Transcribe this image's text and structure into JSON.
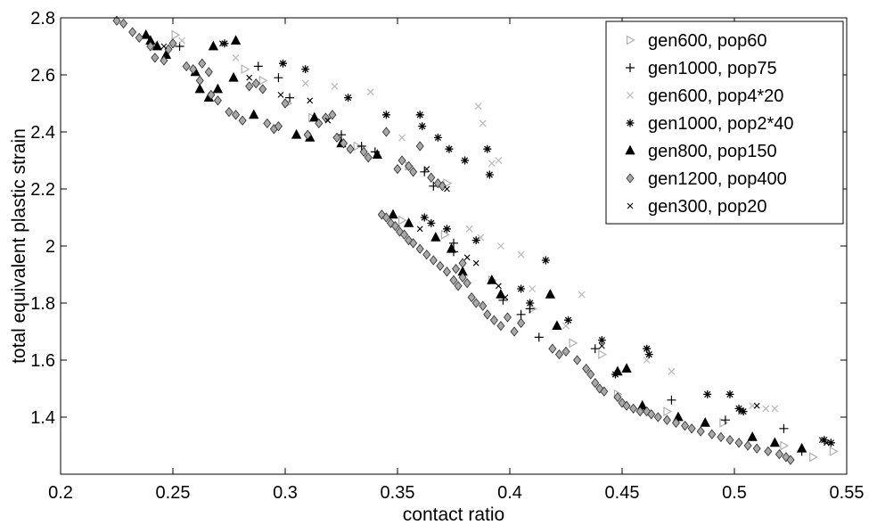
{
  "chart_data": {
    "type": "scatter",
    "xlabel": "contact ratio",
    "ylabel": "total equivalent plastic strain",
    "xlim": [
      0.2,
      0.55
    ],
    "ylim": [
      1.2,
      2.8
    ],
    "xticks": [
      "0.2",
      "0.25",
      "0.3",
      "0.35",
      "0.4",
      "0.45",
      "0.5",
      "0.55"
    ],
    "yticks": [
      "1.4",
      "1.6",
      "1.8",
      "2",
      "2.2",
      "2.4",
      "2.6",
      "2.8"
    ],
    "legend_position": "top-right",
    "grid": false,
    "series": [
      {
        "name": "gen600, pop60",
        "marker": "triangle-right-open",
        "color": "#b0b0b0",
        "points": [
          [
            0.251,
            2.74
          ],
          [
            0.282,
            2.62
          ],
          [
            0.29,
            2.58
          ],
          [
            0.301,
            2.5
          ],
          [
            0.312,
            2.45
          ],
          [
            0.332,
            2.35
          ],
          [
            0.355,
            2.28
          ],
          [
            0.372,
            2.22
          ],
          [
            0.352,
            2.09
          ],
          [
            0.371,
            2.04
          ],
          [
            0.392,
            1.88
          ],
          [
            0.41,
            1.78
          ],
          [
            0.428,
            1.66
          ],
          [
            0.441,
            1.62
          ],
          [
            0.448,
            1.48
          ],
          [
            0.47,
            1.42
          ],
          [
            0.495,
            1.38
          ],
          [
            0.522,
            1.3
          ],
          [
            0.535,
            1.26
          ],
          [
            0.544,
            1.28
          ]
        ]
      },
      {
        "name": "gen1000, pop75",
        "marker": "plus",
        "color": "#000000",
        "points": [
          [
            0.253,
            2.7
          ],
          [
            0.288,
            2.63
          ],
          [
            0.297,
            2.59
          ],
          [
            0.302,
            2.52
          ],
          [
            0.325,
            2.39
          ],
          [
            0.334,
            2.35
          ],
          [
            0.34,
            2.33
          ],
          [
            0.362,
            2.26
          ],
          [
            0.366,
            2.21
          ],
          [
            0.349,
            2.07
          ],
          [
            0.375,
            2.01
          ],
          [
            0.375,
            1.98
          ],
          [
            0.397,
            1.81
          ],
          [
            0.405,
            1.76
          ],
          [
            0.409,
            1.78
          ],
          [
            0.413,
            1.68
          ],
          [
            0.438,
            1.64
          ],
          [
            0.472,
            1.46
          ],
          [
            0.496,
            1.39
          ],
          [
            0.522,
            1.36
          ],
          [
            0.53,
            1.28
          ]
        ]
      },
      {
        "name": "gen600, pop4*20",
        "marker": "x-light",
        "color": "#b8b8b8",
        "points": [
          [
            0.242,
            2.71
          ],
          [
            0.254,
            2.72
          ],
          [
            0.278,
            2.66
          ],
          [
            0.309,
            2.57
          ],
          [
            0.322,
            2.56
          ],
          [
            0.338,
            2.54
          ],
          [
            0.352,
            2.38
          ],
          [
            0.386,
            2.49
          ],
          [
            0.388,
            2.43
          ],
          [
            0.392,
            2.29
          ],
          [
            0.395,
            2.3
          ],
          [
            0.382,
            2.06
          ],
          [
            0.387,
            2.03
          ],
          [
            0.396,
            2.0
          ],
          [
            0.405,
            1.97
          ],
          [
            0.41,
            1.85
          ],
          [
            0.425,
            1.72
          ],
          [
            0.432,
            1.83
          ],
          [
            0.461,
            1.6
          ],
          [
            0.472,
            1.56
          ],
          [
            0.508,
            1.44
          ],
          [
            0.514,
            1.43
          ],
          [
            0.518,
            1.43
          ]
        ]
      },
      {
        "name": "gen1000, pop2*40",
        "marker": "star",
        "color": "#000000",
        "points": [
          [
            0.273,
            2.71
          ],
          [
            0.299,
            2.64
          ],
          [
            0.309,
            2.62
          ],
          [
            0.328,
            2.52
          ],
          [
            0.345,
            2.46
          ],
          [
            0.36,
            2.46
          ],
          [
            0.361,
            2.42
          ],
          [
            0.368,
            2.38
          ],
          [
            0.373,
            2.34
          ],
          [
            0.38,
            2.3
          ],
          [
            0.39,
            2.34
          ],
          [
            0.391,
            2.25
          ],
          [
            0.362,
            2.1
          ],
          [
            0.365,
            2.08
          ],
          [
            0.372,
            2.06
          ],
          [
            0.385,
            2.02
          ],
          [
            0.405,
            1.85
          ],
          [
            0.409,
            1.8
          ],
          [
            0.416,
            1.95
          ],
          [
            0.426,
            1.74
          ],
          [
            0.441,
            1.67
          ],
          [
            0.447,
            1.55
          ],
          [
            0.461,
            1.64
          ],
          [
            0.462,
            1.62
          ],
          [
            0.488,
            1.48
          ],
          [
            0.498,
            1.48
          ],
          [
            0.502,
            1.43
          ],
          [
            0.504,
            1.42
          ],
          [
            0.54,
            1.32
          ],
          [
            0.543,
            1.31
          ]
        ]
      },
      {
        "name": "gen800, pop150",
        "marker": "triangle-filled",
        "color": "#000000",
        "points": [
          [
            0.238,
            2.74
          ],
          [
            0.243,
            2.7
          ],
          [
            0.247,
            2.67
          ],
          [
            0.26,
            2.61
          ],
          [
            0.266,
            2.52
          ],
          [
            0.27,
            2.55
          ],
          [
            0.277,
            2.59
          ],
          [
            0.286,
            2.46
          ],
          [
            0.305,
            2.39
          ],
          [
            0.311,
            2.38
          ],
          [
            0.313,
            2.45
          ],
          [
            0.325,
            2.36
          ],
          [
            0.341,
            2.32
          ],
          [
            0.348,
            2.11
          ],
          [
            0.355,
            2.08
          ],
          [
            0.367,
            2.03
          ],
          [
            0.374,
            1.99
          ],
          [
            0.379,
            1.91
          ],
          [
            0.392,
            1.88
          ],
          [
            0.396,
            1.83
          ],
          [
            0.418,
            1.83
          ],
          [
            0.421,
            1.72
          ],
          [
            0.448,
            1.56
          ],
          [
            0.452,
            1.57
          ],
          [
            0.459,
            1.44
          ],
          [
            0.475,
            1.4
          ],
          [
            0.487,
            1.38
          ],
          [
            0.508,
            1.33
          ],
          [
            0.518,
            1.31
          ],
          [
            0.53,
            1.29
          ],
          [
            0.268,
            2.7
          ],
          [
            0.278,
            2.72
          ],
          [
            0.24,
            2.72
          ],
          [
            0.262,
            2.55
          ]
        ]
      },
      {
        "name": "gen1200, pop400",
        "marker": "diamond-gray",
        "color": "#a8a8a8",
        "points": [
          [
            0.225,
            2.79
          ],
          [
            0.228,
            2.78
          ],
          [
            0.232,
            2.75
          ],
          [
            0.235,
            2.73
          ],
          [
            0.24,
            2.7
          ],
          [
            0.242,
            2.66
          ],
          [
            0.246,
            2.65
          ],
          [
            0.248,
            2.69
          ],
          [
            0.25,
            2.71
          ],
          [
            0.256,
            2.63
          ],
          [
            0.259,
            2.62
          ],
          [
            0.262,
            2.58
          ],
          [
            0.263,
            2.64
          ],
          [
            0.266,
            2.61
          ],
          [
            0.267,
            2.53
          ],
          [
            0.27,
            2.51
          ],
          [
            0.275,
            2.47
          ],
          [
            0.278,
            2.46
          ],
          [
            0.281,
            2.44
          ],
          [
            0.284,
            2.56
          ],
          [
            0.287,
            2.57
          ],
          [
            0.29,
            2.55
          ],
          [
            0.292,
            2.43
          ],
          [
            0.295,
            2.41
          ],
          [
            0.297,
            2.42
          ],
          [
            0.3,
            2.5
          ],
          [
            0.31,
            2.39
          ],
          [
            0.315,
            2.43
          ],
          [
            0.318,
            2.45
          ],
          [
            0.321,
            2.46
          ],
          [
            0.323,
            2.38
          ],
          [
            0.326,
            2.36
          ],
          [
            0.329,
            2.34
          ],
          [
            0.335,
            2.33
          ],
          [
            0.337,
            2.31
          ],
          [
            0.345,
            2.4
          ],
          [
            0.35,
            2.27
          ],
          [
            0.352,
            2.3
          ],
          [
            0.355,
            2.28
          ],
          [
            0.357,
            2.26
          ],
          [
            0.36,
            2.35
          ],
          [
            0.365,
            2.24
          ],
          [
            0.368,
            2.22
          ],
          [
            0.37,
            2.21
          ],
          [
            0.343,
            2.11
          ],
          [
            0.345,
            2.1
          ],
          [
            0.347,
            2.08
          ],
          [
            0.349,
            2.07
          ],
          [
            0.351,
            2.05
          ],
          [
            0.353,
            2.04
          ],
          [
            0.355,
            2.02
          ],
          [
            0.357,
            2.01
          ],
          [
            0.36,
            1.99
          ],
          [
            0.363,
            1.97
          ],
          [
            0.366,
            1.95
          ],
          [
            0.369,
            1.93
          ],
          [
            0.372,
            1.91
          ],
          [
            0.375,
            1.88
          ],
          [
            0.377,
            1.86
          ],
          [
            0.379,
            1.89
          ],
          [
            0.381,
            1.87
          ],
          [
            0.383,
            1.82
          ],
          [
            0.385,
            1.8
          ],
          [
            0.388,
            1.79
          ],
          [
            0.39,
            1.76
          ],
          [
            0.393,
            1.74
          ],
          [
            0.396,
            1.72
          ],
          [
            0.399,
            1.75
          ],
          [
            0.402,
            1.7
          ],
          [
            0.405,
            1.73
          ],
          [
            0.419,
            1.64
          ],
          [
            0.422,
            1.62
          ],
          [
            0.425,
            1.63
          ],
          [
            0.43,
            1.6
          ],
          [
            0.434,
            1.57
          ],
          [
            0.436,
            1.55
          ],
          [
            0.438,
            1.52
          ],
          [
            0.44,
            1.5
          ],
          [
            0.442,
            1.49
          ],
          [
            0.448,
            1.47
          ],
          [
            0.45,
            1.45
          ],
          [
            0.452,
            1.44
          ],
          [
            0.455,
            1.43
          ],
          [
            0.458,
            1.42
          ],
          [
            0.461,
            1.42
          ],
          [
            0.463,
            1.41
          ],
          [
            0.466,
            1.4
          ],
          [
            0.47,
            1.39
          ],
          [
            0.474,
            1.38
          ],
          [
            0.478,
            1.37
          ],
          [
            0.481,
            1.36
          ],
          [
            0.485,
            1.35
          ],
          [
            0.49,
            1.34
          ],
          [
            0.494,
            1.33
          ],
          [
            0.498,
            1.32
          ],
          [
            0.502,
            1.31
          ],
          [
            0.506,
            1.3
          ],
          [
            0.51,
            1.29
          ],
          [
            0.515,
            1.28
          ],
          [
            0.52,
            1.27
          ],
          [
            0.523,
            1.26
          ],
          [
            0.525,
            1.25
          ],
          [
            0.376,
            1.92
          ],
          [
            0.379,
            1.94
          ]
        ]
      },
      {
        "name": "gen300, pop20",
        "marker": "x-small",
        "color": "#000000",
        "points": [
          [
            0.246,
            2.7
          ],
          [
            0.272,
            2.71
          ],
          [
            0.284,
            2.59
          ],
          [
            0.298,
            2.53
          ],
          [
            0.311,
            2.51
          ],
          [
            0.319,
            2.44
          ],
          [
            0.363,
            2.27
          ],
          [
            0.372,
            2.2
          ],
          [
            0.36,
            2.06
          ],
          [
            0.381,
            1.96
          ],
          [
            0.385,
            1.94
          ],
          [
            0.395,
            1.86
          ],
          [
            0.398,
            1.82
          ],
          [
            0.441,
            1.65
          ],
          [
            0.462,
            1.62
          ],
          [
            0.503,
            1.42
          ],
          [
            0.51,
            1.44
          ],
          [
            0.539,
            1.32
          ],
          [
            0.541,
            1.31
          ]
        ]
      }
    ]
  }
}
